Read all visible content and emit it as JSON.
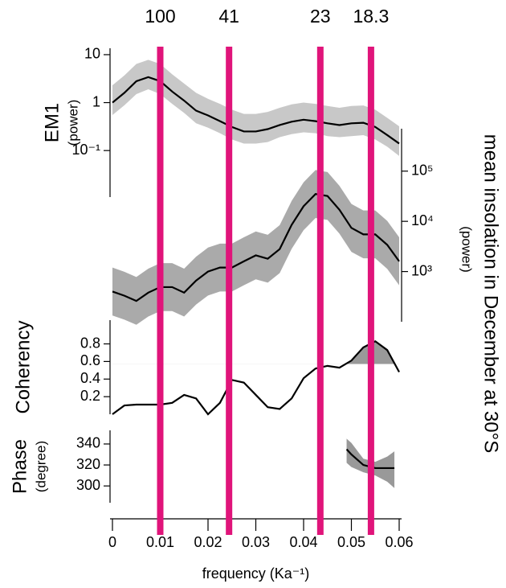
{
  "chart_data": [
    {
      "type": "line",
      "ylabel": "EM1",
      "ylabel_sub": "(power)",
      "log_y": true,
      "axis_side": "left",
      "xlim": [
        0,
        0.06
      ],
      "ylim": [
        0.0107,
        13.6
      ],
      "yticks": [
        {
          "value": 10,
          "label": "10"
        },
        {
          "value": 1,
          "label": "1"
        },
        {
          "value": 0.1,
          "label": "10⁻¹"
        }
      ],
      "x": [
        0,
        0.0025,
        0.005,
        0.0075,
        0.01,
        0.0125,
        0.015,
        0.0175,
        0.02,
        0.0225,
        0.025,
        0.0275,
        0.03,
        0.0325,
        0.035,
        0.0375,
        0.04,
        0.0425,
        0.045,
        0.0475,
        0.05,
        0.0525,
        0.055,
        0.0575,
        0.06
      ],
      "values": [
        1.0,
        1.6,
        2.8,
        3.4,
        2.8,
        1.7,
        1.1,
        0.68,
        0.54,
        0.41,
        0.31,
        0.25,
        0.25,
        0.28,
        0.34,
        0.4,
        0.44,
        0.41,
        0.37,
        0.34,
        0.37,
        0.38,
        0.31,
        0.21,
        0.14
      ],
      "band_upper": [
        2.3,
        3.7,
        6.4,
        7.8,
        6.4,
        3.9,
        2.5,
        1.6,
        1.2,
        0.94,
        0.71,
        0.58,
        0.58,
        0.64,
        0.78,
        0.92,
        1.0,
        0.94,
        0.85,
        0.78,
        0.85,
        0.87,
        0.71,
        0.48,
        0.32
      ],
      "band_lower": [
        0.55,
        0.88,
        1.5,
        1.9,
        1.5,
        0.94,
        0.61,
        0.37,
        0.3,
        0.23,
        0.17,
        0.14,
        0.14,
        0.15,
        0.19,
        0.22,
        0.24,
        0.23,
        0.2,
        0.19,
        0.2,
        0.21,
        0.17,
        0.12,
        0.077
      ],
      "color": "#000000",
      "band_color": "#c8c8c8",
      "markers": {
        "x": [
          0.01,
          0.0244,
          0.0435,
          0.0541
        ],
        "labels": [
          "100",
          "41",
          "23",
          "18.3"
        ],
        "color": "#e0147a"
      }
    },
    {
      "type": "line",
      "ylabel": "mean insolation in December at 30°S",
      "ylabel_sub": "(power)",
      "log_y": true,
      "axis_side": "right",
      "xlim": [
        0,
        0.06
      ],
      "ylim": [
        100,
        700000
      ],
      "yticks": [
        {
          "value": 100000,
          "label": "10⁵"
        },
        {
          "value": 10000,
          "label": "10⁴"
        },
        {
          "value": 1000,
          "label": "10³"
        }
      ],
      "x": [
        0,
        0.0025,
        0.005,
        0.0075,
        0.01,
        0.0125,
        0.015,
        0.0175,
        0.02,
        0.0225,
        0.025,
        0.0275,
        0.03,
        0.0325,
        0.035,
        0.0375,
        0.04,
        0.0425,
        0.045,
        0.0475,
        0.05,
        0.0525,
        0.055,
        0.0575,
        0.06
      ],
      "values": [
        400,
        330,
        260,
        380,
        490,
        490,
        380,
        660,
        1000,
        1200,
        1200,
        1600,
        2100,
        1800,
        2800,
        8500,
        20000,
        35000,
        32000,
        17000,
        7400,
        5500,
        5500,
        3400,
        1600
      ],
      "band_upper": [
        1200,
        990,
        780,
        1140,
        1470,
        1470,
        1140,
        1980,
        3000,
        3600,
        3600,
        4800,
        6300,
        5400,
        8400,
        25500,
        60000,
        105000,
        96000,
        51000,
        22200,
        16500,
        16500,
        10200,
        4800
      ],
      "band_lower": [
        133,
        110,
        87,
        127,
        163,
        163,
        127,
        220,
        333,
        400,
        400,
        533,
        700,
        600,
        933,
        2833,
        6667,
        11667,
        10667,
        5667,
        2467,
        1833,
        1833,
        1133,
        533
      ],
      "color": "#000000",
      "band_color": "#aaaaaa"
    },
    {
      "type": "line",
      "ylabel": "Coherency",
      "log_y": false,
      "axis_side": "left",
      "xlim": [
        0,
        0.06
      ],
      "ylim": [
        0,
        1.07
      ],
      "yticks": [
        0.8,
        0.6,
        0.4,
        0.2
      ],
      "x": [
        0,
        0.0025,
        0.005,
        0.0075,
        0.01,
        0.0125,
        0.015,
        0.0175,
        0.02,
        0.0225,
        0.025,
        0.0275,
        0.03,
        0.0325,
        0.035,
        0.0375,
        0.04,
        0.0425,
        0.045,
        0.0475,
        0.05,
        0.0525,
        0.055,
        0.0575,
        0.06
      ],
      "values": [
        0,
        0.1,
        0.11,
        0.11,
        0.11,
        0.13,
        0.22,
        0.18,
        0,
        0.13,
        0.39,
        0.36,
        0.22,
        0.08,
        0.06,
        0.18,
        0.41,
        0.52,
        0.55,
        0.53,
        0.61,
        0.76,
        0.83,
        0.73,
        0.48
      ],
      "significance_level": 0.57,
      "color": "#000000",
      "band_color": "#999999"
    },
    {
      "type": "line",
      "ylabel": "Phase",
      "ylabel_sub": "(degree)",
      "log_y": false,
      "axis_side": "left",
      "xlim": [
        0,
        0.06
      ],
      "ylim": [
        284,
        353
      ],
      "yticks": [
        340,
        320,
        300
      ],
      "x": [
        0.049,
        0.05,
        0.0525,
        0.055,
        0.0575,
        0.059
      ],
      "values": [
        335,
        330,
        320,
        317,
        317,
        317
      ],
      "band_upper": [
        345,
        341,
        326,
        323,
        328,
        333
      ],
      "band_lower": [
        322,
        318,
        313,
        310,
        304,
        298
      ],
      "color": "#000000",
      "band_color": "#999999",
      "xlabel": "frequency (Ka⁻¹)",
      "xticks": [
        0,
        0.01,
        0.02,
        0.03,
        0.04,
        0.05,
        0.06
      ]
    }
  ]
}
